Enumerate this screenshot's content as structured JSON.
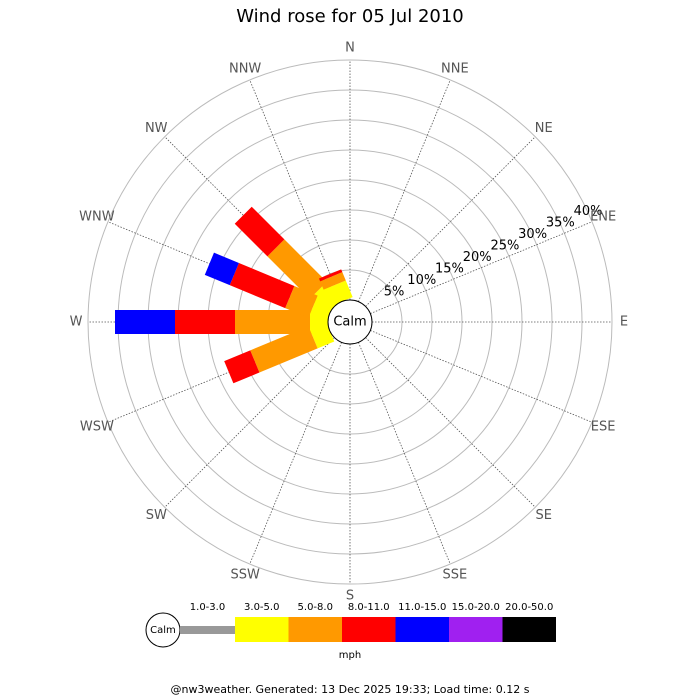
{
  "chart_data": {
    "type": "windrose",
    "title": "Wind rose for 05 Jul 2010",
    "directions": [
      "N",
      "NNE",
      "NE",
      "ENE",
      "E",
      "ESE",
      "SE",
      "SSE",
      "S",
      "SSW",
      "SW",
      "WSW",
      "W",
      "WNW",
      "NW",
      "NNW"
    ],
    "calm_label": "Calm",
    "unit": "mph",
    "rlim": [
      0,
      40
    ],
    "rticks": [
      {
        "value": 5,
        "label": "5%"
      },
      {
        "value": 10,
        "label": "10%"
      },
      {
        "value": 15,
        "label": "15%"
      },
      {
        "value": 20,
        "label": "20%"
      },
      {
        "value": 25,
        "label": "25%"
      },
      {
        "value": 30,
        "label": "30%"
      },
      {
        "value": 35,
        "label": "35%"
      },
      {
        "value": 40,
        "label": "40%"
      }
    ],
    "series": [
      {
        "name": "1.0-3.0",
        "color": "#999999",
        "values": [
          0,
          0,
          0,
          0,
          0,
          0,
          0,
          0,
          0,
          0,
          0,
          0,
          0,
          0,
          0,
          0
        ]
      },
      {
        "name": "3.0-5.0",
        "color": "#ffff00",
        "values": [
          0,
          0,
          0,
          0,
          0,
          0,
          0,
          0,
          0,
          0,
          0,
          3,
          3,
          3,
          3.8,
          3
        ]
      },
      {
        "name": "5.0-8.0",
        "color": "#ff9900",
        "values": [
          0,
          0,
          0,
          0,
          0,
          0,
          0,
          0,
          0,
          0,
          0,
          10.5,
          12.5,
          4.2,
          10,
          1.5
        ]
      },
      {
        "name": "8.0-11.0",
        "color": "#ff0000",
        "values": [
          0,
          0,
          0,
          0,
          0,
          0,
          0,
          0,
          0,
          0,
          0,
          4.7,
          10,
          10,
          7.7,
          0.5
        ]
      },
      {
        "name": "11.0-15.0",
        "color": "#0000ff",
        "values": [
          0,
          0,
          0,
          0,
          0,
          0,
          0,
          0,
          0,
          0,
          0,
          0,
          10,
          4.5,
          0,
          0
        ]
      },
      {
        "name": "15.0-20.0",
        "color": "#a020f0",
        "values": [
          0,
          0,
          0,
          0,
          0,
          0,
          0,
          0,
          0,
          0,
          0,
          0,
          0,
          0,
          0,
          0
        ]
      },
      {
        "name": "20.0-50.0",
        "color": "#000000",
        "values": [
          0,
          0,
          0,
          0,
          0,
          0,
          0,
          0,
          0,
          0,
          0,
          0,
          0,
          0,
          0,
          0
        ]
      }
    ],
    "footer": "@nw3weather. Generated: 13 Dec 2025 19:33; Load time: 0.12 s"
  }
}
